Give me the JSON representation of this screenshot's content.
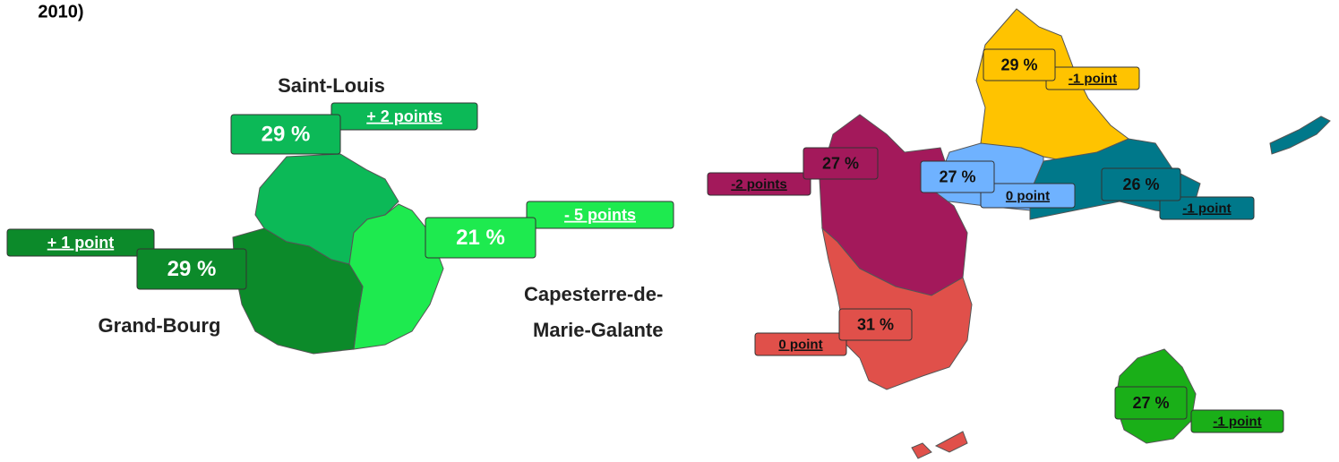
{
  "header": {
    "title_fragment": "2010)"
  },
  "left_map": {
    "regions": [
      {
        "name_lines": [
          "Saint-Louis"
        ],
        "value": "29 %",
        "change": "+ 2 points",
        "color": "#0cb957"
      },
      {
        "name_lines": [
          "Capesterre-de-",
          "Marie-Galante"
        ],
        "value": "21 %",
        "change": "- 5 points",
        "color": "#1eea4f"
      },
      {
        "name_lines": [
          "Grand-Bourg"
        ],
        "value": "29 %",
        "change": "+ 1 point",
        "color": "#0c8a2a"
      }
    ]
  },
  "right_map": {
    "regions": [
      {
        "value": "29 %",
        "change": "-1 point",
        "color": "#ffc300"
      },
      {
        "value": "26 %",
        "change": "-1 point",
        "color": "#00788a"
      },
      {
        "value": "27 %",
        "change": "0 point",
        "color": "#6fb2ff"
      },
      {
        "value": "27 %",
        "change": "-2 points",
        "color": "#a3195b"
      },
      {
        "value": "31 %",
        "change": "0 point",
        "color": "#e0504a"
      },
      {
        "value": "27 %",
        "change": "-1 point",
        "color": "#1aaf18"
      }
    ]
  }
}
